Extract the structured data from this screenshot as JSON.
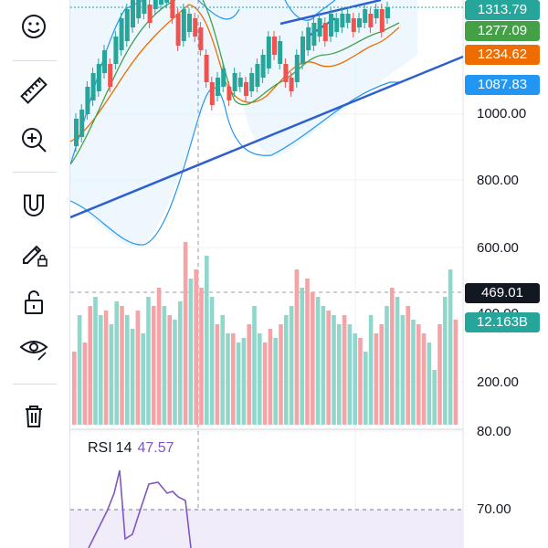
{
  "toolbar": {
    "tools": [
      {
        "name": "smiley-icon"
      },
      {
        "name": "ruler-icon"
      },
      {
        "name": "zoom-in-icon"
      },
      {
        "name": "magnet-icon"
      },
      {
        "name": "pencil-lock-icon"
      },
      {
        "name": "unlock-icon"
      },
      {
        "name": "eye-icon"
      },
      {
        "name": "trash-icon"
      }
    ]
  },
  "price_axis": {
    "labels": [
      "1000.00",
      "800.00",
      "600.00",
      "400.00",
      "200.00",
      "80.00",
      "70.00"
    ]
  },
  "price_tags": {
    "tag1": {
      "value": "1313.79",
      "color": "#26a69a"
    },
    "tag2": {
      "value": "1277.09",
      "color": "#43a047"
    },
    "tag3": {
      "value": "1234.62",
      "color": "#ef6c00"
    },
    "tag4": {
      "value": "1087.83",
      "color": "#2196f3"
    },
    "tag5": {
      "value": "469.01",
      "color": "#131722"
    },
    "tag6": {
      "value": "12.163B",
      "color": "#26a69a"
    }
  },
  "rsi": {
    "label": "RSI",
    "period": "14",
    "value": "47.57"
  },
  "colors": {
    "up": "#26a69a",
    "down": "#ef5350",
    "trend": "#2d5fce",
    "rsi": "#7e57c2"
  }
}
